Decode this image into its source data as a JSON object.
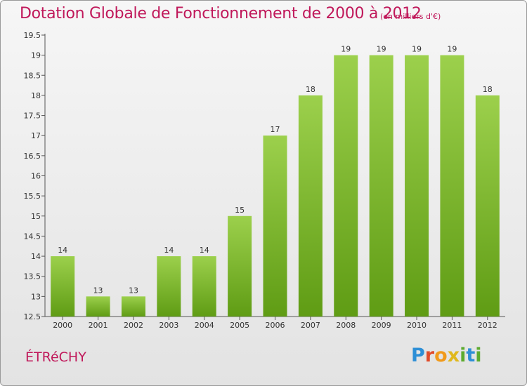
{
  "header": {
    "title": "Dotation Globale de Fonctionnement de 2000 à 2012",
    "subtitle": "(en milliers d'€)"
  },
  "footer": {
    "town": "ÉTRéCHY",
    "logo_letters": [
      "P",
      "r",
      "o",
      "x",
      "i",
      "t",
      "i"
    ]
  },
  "colors": {
    "title": "#c0185a",
    "bar_top": "#9cd04c",
    "bar_bottom": "#5f9c14",
    "axis": "#555555"
  },
  "chart_data": {
    "type": "bar",
    "title": "Dotation Globale de Fonctionnement de 2000 à 2012",
    "subtitle": "(en milliers d'€)",
    "categories": [
      "2000",
      "2001",
      "2002",
      "2003",
      "2004",
      "2005",
      "2006",
      "2007",
      "2008",
      "2009",
      "2010",
      "2011",
      "2012"
    ],
    "values": [
      14,
      13,
      13,
      14,
      14,
      15,
      17,
      18,
      19,
      19,
      19,
      19,
      18
    ],
    "data_labels": [
      "14",
      "13",
      "13",
      "14",
      "14",
      "15",
      "17",
      "18",
      "19",
      "19",
      "19",
      "19",
      "18"
    ],
    "yticks": [
      "12.5",
      "13",
      "13.5",
      "14",
      "14.5",
      "15",
      "15.5",
      "16",
      "16.5",
      "17",
      "17.5",
      "18",
      "18.5",
      "19",
      "19.5"
    ],
    "ylim": [
      12.5,
      19.5
    ],
    "grid": false,
    "legend": "none"
  }
}
